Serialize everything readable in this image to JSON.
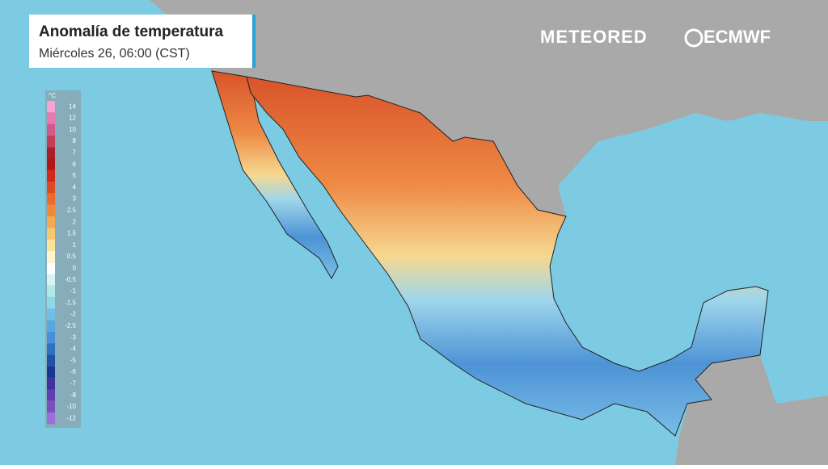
{
  "header": {
    "title": "Anomalía de temperatura",
    "subtitle": "Miércoles 26, 06:00 (CST)"
  },
  "logos": [
    "METEORED",
    "ECMWF"
  ],
  "legend": {
    "unit": "°C",
    "values": [
      14,
      12,
      10,
      8,
      7,
      6,
      5,
      4,
      3,
      2.5,
      2,
      1.5,
      1,
      0.5,
      0,
      -0.5,
      -1,
      -1.5,
      -2,
      -2.5,
      -3,
      -4,
      -5,
      -6,
      -7,
      -8,
      -10,
      -12
    ],
    "colors": [
      "#f5a3d0",
      "#e87ab0",
      "#d25a8a",
      "#c0405a",
      "#a8202a",
      "#b01818",
      "#d02a1a",
      "#e04a20",
      "#ec6a2a",
      "#f08a3a",
      "#f4a850",
      "#f8c870",
      "#fbe49a",
      "#fdf4cc",
      "#ffffff",
      "#d8f4f0",
      "#b0e8e8",
      "#90d8e8",
      "#70bfe8",
      "#5aa8e0",
      "#4890d8",
      "#3070c0",
      "#2050a8",
      "#183890",
      "#4030a0",
      "#6040b0",
      "#7a50c0",
      "#9a70d8"
    ]
  }
}
